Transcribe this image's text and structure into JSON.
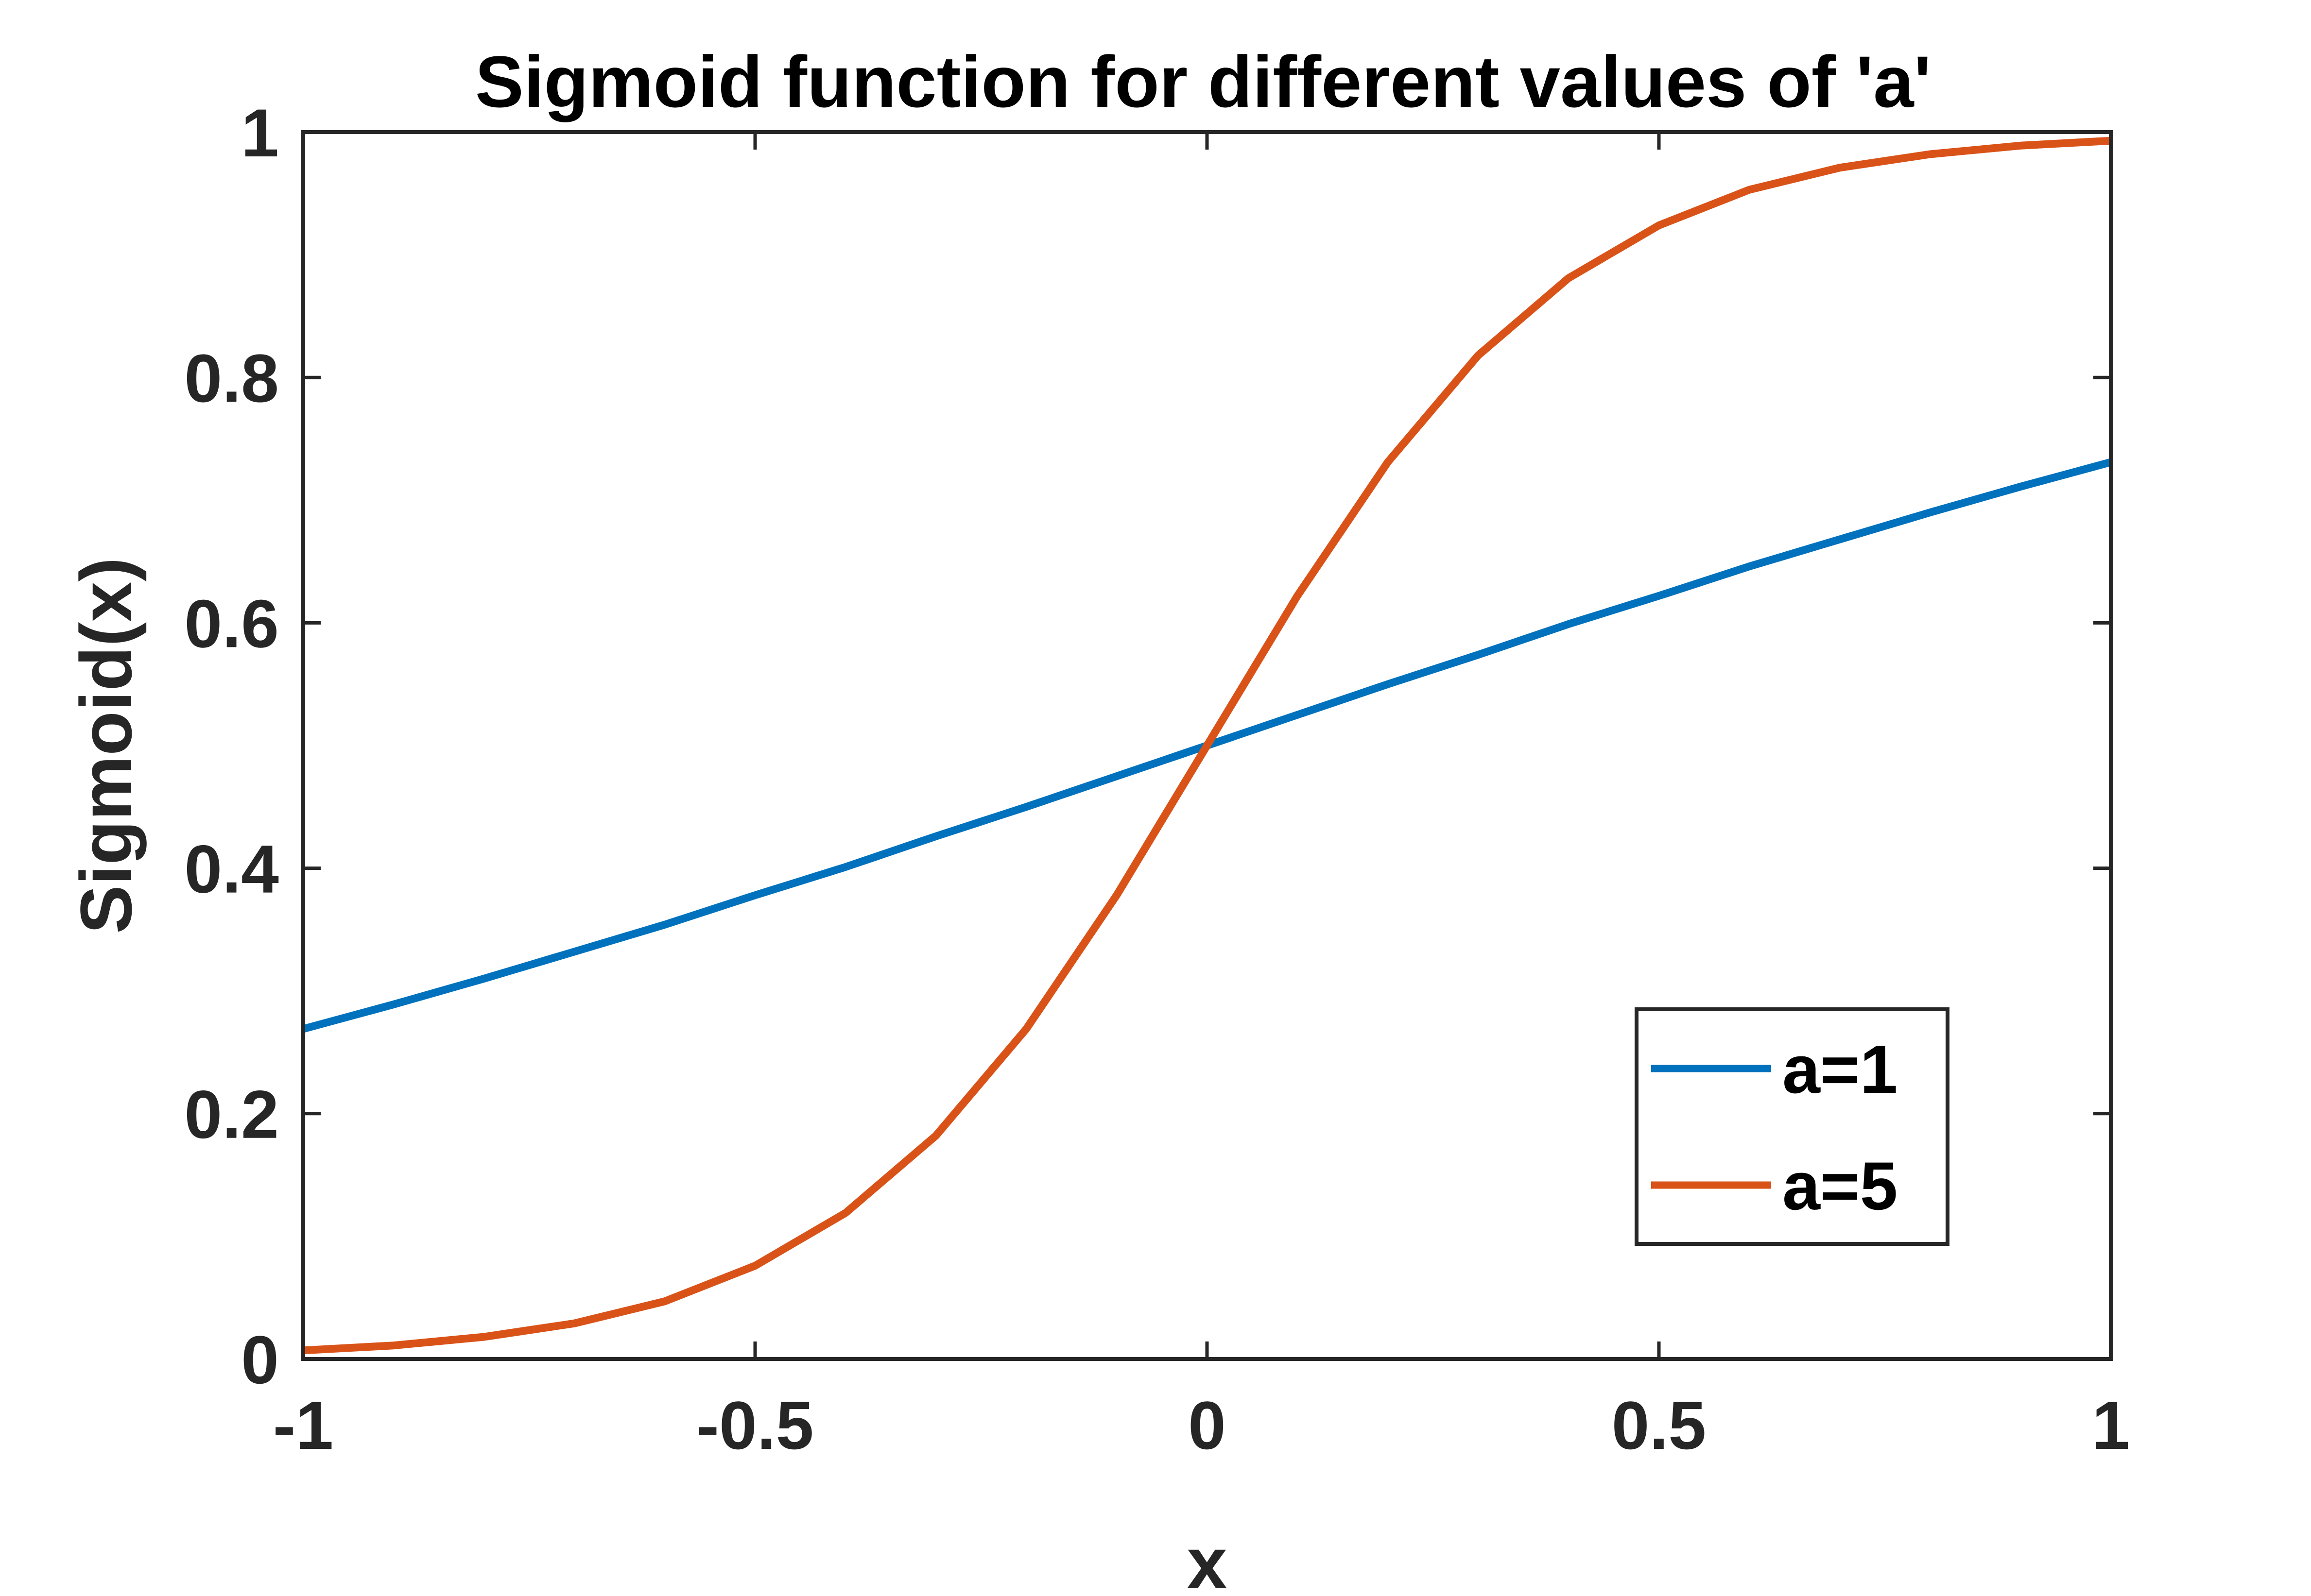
{
  "chart_data": {
    "type": "line",
    "title": "Sigmoid function for different values of 'a'",
    "xlabel": "x",
    "ylabel": "Sigmoid(x)",
    "xlim": [
      -1,
      1
    ],
    "ylim": [
      0,
      1
    ],
    "xticks": [
      -1,
      -0.5,
      0,
      0.5,
      1
    ],
    "xtick_labels": [
      "-1",
      "-0.5",
      "0",
      "0.5",
      "1"
    ],
    "yticks": [
      0,
      0.2,
      0.4,
      0.6,
      0.8,
      1
    ],
    "ytick_labels": [
      "0",
      "0.2",
      "0.4",
      "0.6",
      "0.8",
      "1"
    ],
    "grid": false,
    "legend_position": "bottom-right",
    "x": [
      -1,
      -0.9,
      -0.8,
      -0.7,
      -0.6,
      -0.5,
      -0.4,
      -0.3,
      -0.2,
      -0.1,
      0,
      0.1,
      0.2,
      0.3,
      0.4,
      0.5,
      0.6,
      0.7,
      0.8,
      0.9,
      1
    ],
    "series": [
      {
        "name": "a=1",
        "color": "#0072bd",
        "values": [
          0.269,
          0.289,
          0.31,
          0.332,
          0.354,
          0.378,
          0.401,
          0.426,
          0.45,
          0.475,
          0.5,
          0.525,
          0.55,
          0.574,
          0.599,
          0.622,
          0.646,
          0.668,
          0.69,
          0.711,
          0.731
        ]
      },
      {
        "name": "a=5",
        "color": "#d95319",
        "values": [
          0.007,
          0.011,
          0.018,
          0.029,
          0.047,
          0.076,
          0.119,
          0.182,
          0.269,
          0.378,
          0.5,
          0.622,
          0.731,
          0.818,
          0.881,
          0.924,
          0.953,
          0.971,
          0.982,
          0.989,
          0.993
        ]
      }
    ]
  }
}
